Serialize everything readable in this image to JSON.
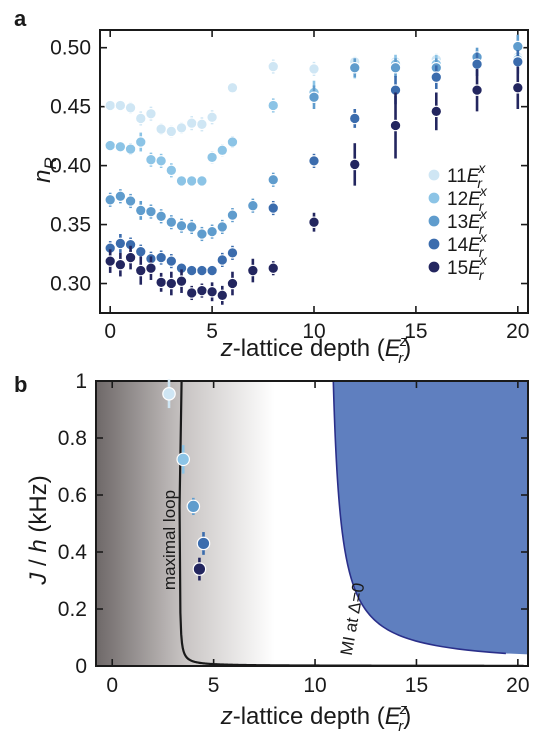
{
  "chart_data": [
    {
      "panel_label": "a",
      "type": "scatter",
      "xlabel_var": "z",
      "xlabel_rest": "-lattice depth (",
      "xlabel_unit_sym": "E",
      "xlabel_unit_sub": "r",
      "xlabel_unit_sup": "z",
      "xlabel_close": ")",
      "ylabel_sym": "n",
      "ylabel_sub": "R",
      "xlim": [
        -0.5,
        20.5
      ],
      "ylim": [
        0.275,
        0.515
      ],
      "xticks": [
        0,
        5,
        10,
        15,
        20
      ],
      "yticks": [
        0.3,
        0.35,
        0.4,
        0.45,
        0.5
      ],
      "ytick_labels": [
        "0.30",
        "0.35",
        "0.40",
        "0.45",
        "0.50"
      ],
      "legend_position": "right",
      "series": [
        {
          "name_value": "11",
          "name_sym": "E",
          "name_sub": "r",
          "name_sup": "x",
          "color": "#cfe6f4",
          "x": [
            0,
            0.5,
            1,
            1.5,
            2,
            2.5,
            3,
            3.5,
            4,
            4.5,
            5,
            6,
            8,
            10,
            12,
            14,
            16,
            18,
            20
          ],
          "y": [
            0.451,
            0.451,
            0.449,
            0.44,
            0.444,
            0.431,
            0.429,
            0.432,
            0.436,
            0.435,
            0.441,
            0.466,
            0.484,
            0.482,
            0.488,
            0.488,
            0.49,
            0.49,
            0.492
          ],
          "err": [
            0.004,
            0.004,
            0.005,
            0.006,
            0.006,
            0.005,
            0.005,
            0.005,
            0.006,
            0.006,
            0.006,
            0.004,
            0.006,
            0.006,
            0.005,
            0.005,
            0.005,
            0.005,
            0.005
          ]
        },
        {
          "name_value": "12",
          "name_sym": "E",
          "name_sub": "r",
          "name_sup": "x",
          "color": "#8cc4e6",
          "x": [
            0,
            0.5,
            1,
            1.5,
            2,
            2.5,
            3,
            3.5,
            4,
            4.5,
            5,
            5.5,
            6,
            8,
            10,
            12,
            14,
            16,
            18,
            20
          ],
          "y": [
            0.417,
            0.416,
            0.414,
            0.42,
            0.405,
            0.404,
            0.396,
            0.387,
            0.387,
            0.387,
            0.407,
            0.413,
            0.42,
            0.451,
            0.462,
            0.482,
            0.486,
            0.486,
            0.49,
            0.49
          ],
          "err": [
            0.004,
            0.004,
            0.005,
            0.008,
            0.006,
            0.006,
            0.006,
            0.004,
            0.004,
            0.004,
            0.005,
            0.005,
            0.005,
            0.006,
            0.01,
            0.008,
            0.008,
            0.008,
            0.008,
            0.006
          ]
        },
        {
          "name_value": "13",
          "name_sym": "E",
          "name_sub": "r",
          "name_sup": "x",
          "color": "#5f9ccd",
          "x": [
            0,
            0.5,
            1,
            1.5,
            2,
            2.5,
            3,
            3.5,
            4,
            4.5,
            5,
            5.5,
            6,
            7,
            8,
            10,
            12,
            14,
            16,
            18,
            20
          ],
          "y": [
            0.371,
            0.374,
            0.37,
            0.362,
            0.361,
            0.357,
            0.352,
            0.349,
            0.348,
            0.342,
            0.344,
            0.348,
            0.358,
            0.366,
            0.388,
            0.458,
            0.483,
            0.483,
            0.483,
            0.492,
            0.501
          ],
          "err": [
            0.006,
            0.006,
            0.006,
            0.008,
            0.006,
            0.006,
            0.006,
            0.006,
            0.006,
            0.006,
            0.006,
            0.006,
            0.006,
            0.006,
            0.006,
            0.01,
            0.008,
            0.008,
            0.008,
            0.008,
            0.01
          ]
        },
        {
          "name_value": "14",
          "name_sym": "E",
          "name_sub": "r",
          "name_sup": "x",
          "color": "#3b6cad",
          "x": [
            0,
            0.5,
            1,
            1.5,
            2,
            2.5,
            3,
            3.5,
            4,
            4.5,
            5,
            5.5,
            6,
            8,
            10,
            12,
            14,
            16,
            18,
            20
          ],
          "y": [
            0.33,
            0.334,
            0.333,
            0.327,
            0.321,
            0.322,
            0.319,
            0.313,
            0.311,
            0.311,
            0.311,
            0.32,
            0.326,
            0.364,
            0.404,
            0.44,
            0.464,
            0.475,
            0.486,
            0.488
          ],
          "err": [
            0.006,
            0.008,
            0.006,
            0.006,
            0.006,
            0.006,
            0.006,
            0.004,
            0.004,
            0.004,
            0.004,
            0.006,
            0.006,
            0.006,
            0.006,
            0.008,
            0.012,
            0.01,
            0.01,
            0.01
          ]
        },
        {
          "name_value": "15",
          "name_sym": "E",
          "name_sub": "r",
          "name_sup": "x",
          "color": "#23265f",
          "x": [
            0,
            0.5,
            1,
            1.5,
            2,
            2.5,
            3,
            3.5,
            4,
            4.5,
            5,
            5.5,
            6,
            7,
            8,
            10,
            12,
            14,
            16,
            18,
            20
          ],
          "y": [
            0.319,
            0.316,
            0.322,
            0.311,
            0.313,
            0.301,
            0.3,
            0.302,
            0.292,
            0.294,
            0.293,
            0.29,
            0.3,
            0.311,
            0.313,
            0.352,
            0.401,
            0.434,
            0.446,
            0.464,
            0.466
          ],
          "err": [
            0.01,
            0.01,
            0.01,
            0.012,
            0.01,
            0.008,
            0.01,
            0.01,
            0.006,
            0.006,
            0.008,
            0.008,
            0.01,
            0.01,
            0.006,
            0.008,
            0.018,
            0.028,
            0.016,
            0.018,
            0.018
          ]
        }
      ]
    },
    {
      "panel_label": "b",
      "type": "area",
      "xlabel_var": "z",
      "xlabel_rest": "-lattice depth (",
      "xlabel_unit_sym": "E",
      "xlabel_unit_sub": "r",
      "xlabel_unit_sup": "z",
      "xlabel_close": ")",
      "ylabel_pre": "J",
      "ylabel_mid": " / ",
      "ylabel_h": "h",
      "ylabel_unit": " (kHz)",
      "xlim": [
        -0.8,
        20.5
      ],
      "ylim": [
        0,
        1
      ],
      "xticks": [
        0,
        5,
        10,
        15,
        20
      ],
      "yticks": [
        0,
        0.2,
        0.4,
        0.6,
        0.8,
        1
      ],
      "ytick_labels": [
        "0",
        "0.2",
        "0.4",
        "0.6",
        "0.8",
        "1"
      ],
      "maximal_loop_label": "maximal loop",
      "maximal_loop_curve": {
        "A": 0.1245,
        "x0": 3.3,
        "xmax": 20.3,
        "color": "#1a1a1a"
      },
      "mi_label": "MI at  Δ=0",
      "mi_region": {
        "x0": 10.9,
        "B": 0.53,
        "color": "#5f7fbf",
        "edge_color": "#2a2f8a"
      },
      "gradient": {
        "start": -0.8,
        "mid": 3.6,
        "end": 8.0,
        "dark": "#6e6868",
        "light": "#ffffff"
      },
      "points": [
        {
          "x": 2.8,
          "y": 0.955,
          "xerr": 0.3,
          "yerr": 0.05,
          "color": "#cfe6f4"
        },
        {
          "x": 3.5,
          "y": 0.725,
          "xerr": 0.25,
          "yerr": 0.05,
          "color": "#8cc4e6"
        },
        {
          "x": 4.0,
          "y": 0.56,
          "xerr": 0.15,
          "yerr": 0.03,
          "color": "#5f9ccd"
        },
        {
          "x": 4.5,
          "y": 0.43,
          "xerr": 0.15,
          "yerr": 0.04,
          "color": "#3b6cad"
        },
        {
          "x": 4.3,
          "y": 0.34,
          "xerr": 0.15,
          "yerr": 0.04,
          "color": "#23265f"
        }
      ]
    }
  ]
}
